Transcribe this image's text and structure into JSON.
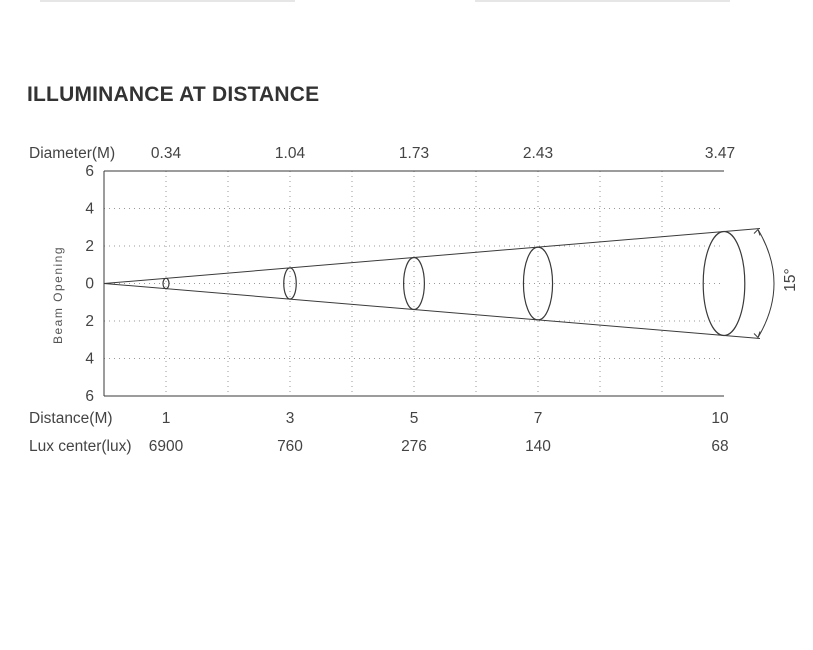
{
  "title": "ILLUMINANCE AT DISTANCE",
  "chart_data": {
    "type": "beam-diagram",
    "beam_angle_label": "15°",
    "y_axis": {
      "label": "Beam Opening",
      "ticks": [
        "6",
        "4",
        "2",
        "0",
        "2",
        "4",
        "6"
      ],
      "range": [
        -6,
        6
      ]
    },
    "rows": {
      "diameter_label": "Diameter(M)",
      "distance_label": "Distance(M)",
      "lux_label": "Lux center(lux)"
    },
    "points": [
      {
        "distance": "1",
        "diameter": "0.34",
        "lux": "6900",
        "d": 1
      },
      {
        "distance": "3",
        "diameter": "1.04",
        "lux": "760",
        "d": 3
      },
      {
        "distance": "5",
        "diameter": "1.73",
        "lux": "276",
        "d": 5
      },
      {
        "distance": "7",
        "diameter": "2.43",
        "lux": "140",
        "d": 7
      },
      {
        "distance": "10",
        "diameter": "3.47",
        "lux": "68",
        "d": 10
      }
    ],
    "grid": "dotted",
    "colors": {
      "line": "#3a3a3a",
      "grid": "#9a9a9a",
      "text": "#444444"
    }
  }
}
